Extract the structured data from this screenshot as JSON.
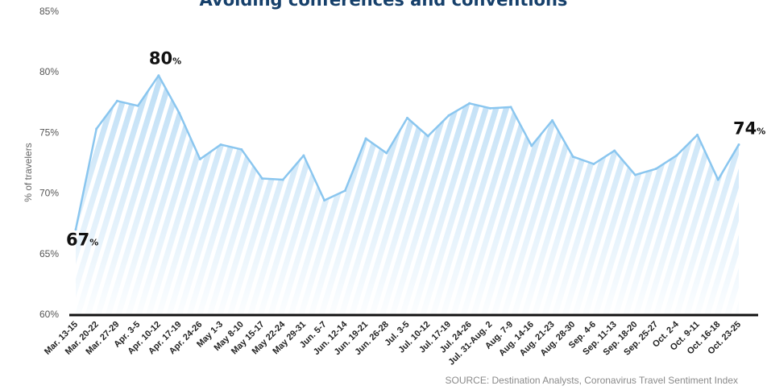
{
  "chart_data": {
    "type": "area",
    "title": "Avoiding conferences and conventions",
    "ylabel": "% of travelers",
    "xlabel": "",
    "ylim": [
      60,
      85
    ],
    "y_ticks": [
      "60%",
      "65%",
      "70%",
      "75%",
      "80%",
      "85%"
    ],
    "grid": false,
    "categories": [
      "Mar. 13-15",
      "Mar. 20-22",
      "Mar. 27-29",
      "Apr. 3-5",
      "Apr. 10-12",
      "Apr. 17-19",
      "Apr. 24-26",
      "May 1-3",
      "May 8-10",
      "May 15-17",
      "May 22-24",
      "May 29-31",
      "Jun. 5-7",
      "Jun. 12-14",
      "Jun. 19-21",
      "Jun. 26-28",
      "Jul. 3-5",
      "Jul. 10-12",
      "Jul. 17-19",
      "Jul. 24-26",
      "Jul. 31-Aug. 2",
      "Aug. 7-9",
      "Aug. 14-16",
      "Aug. 21-23",
      "Aug. 28-30",
      "Sep. 4-6",
      "Sep. 11-13",
      "Sep. 18-20",
      "Sep. 25-27",
      "Oct. 2-4",
      "Oct. 9-11",
      "Oct. 16-18",
      "Oct. 23-25"
    ],
    "series": [
      {
        "values": [
          67.0,
          75.3,
          77.6,
          77.2,
          79.7,
          76.6,
          72.8,
          74.0,
          73.6,
          71.2,
          71.1,
          73.1,
          69.4,
          70.2,
          74.5,
          73.3,
          76.2,
          74.7,
          76.4,
          77.4,
          77.0,
          77.1,
          73.9,
          76.0,
          73.0,
          72.4,
          73.5,
          71.5,
          72.0,
          73.1,
          74.8,
          71.1,
          74.0
        ]
      }
    ],
    "annotations": [
      {
        "index": 0,
        "value": "67",
        "unit": "%"
      },
      {
        "index": 4,
        "value": "80",
        "unit": "%"
      },
      {
        "index": 32,
        "value": "74",
        "unit": "%"
      }
    ],
    "colors": {
      "line": "#8ac6ef",
      "fill": "#b9dcf5",
      "title": "#16406b",
      "axis": "#111111"
    },
    "source": "SOURCE: Destination Analysts, Coronavirus Travel Sentiment Index"
  }
}
